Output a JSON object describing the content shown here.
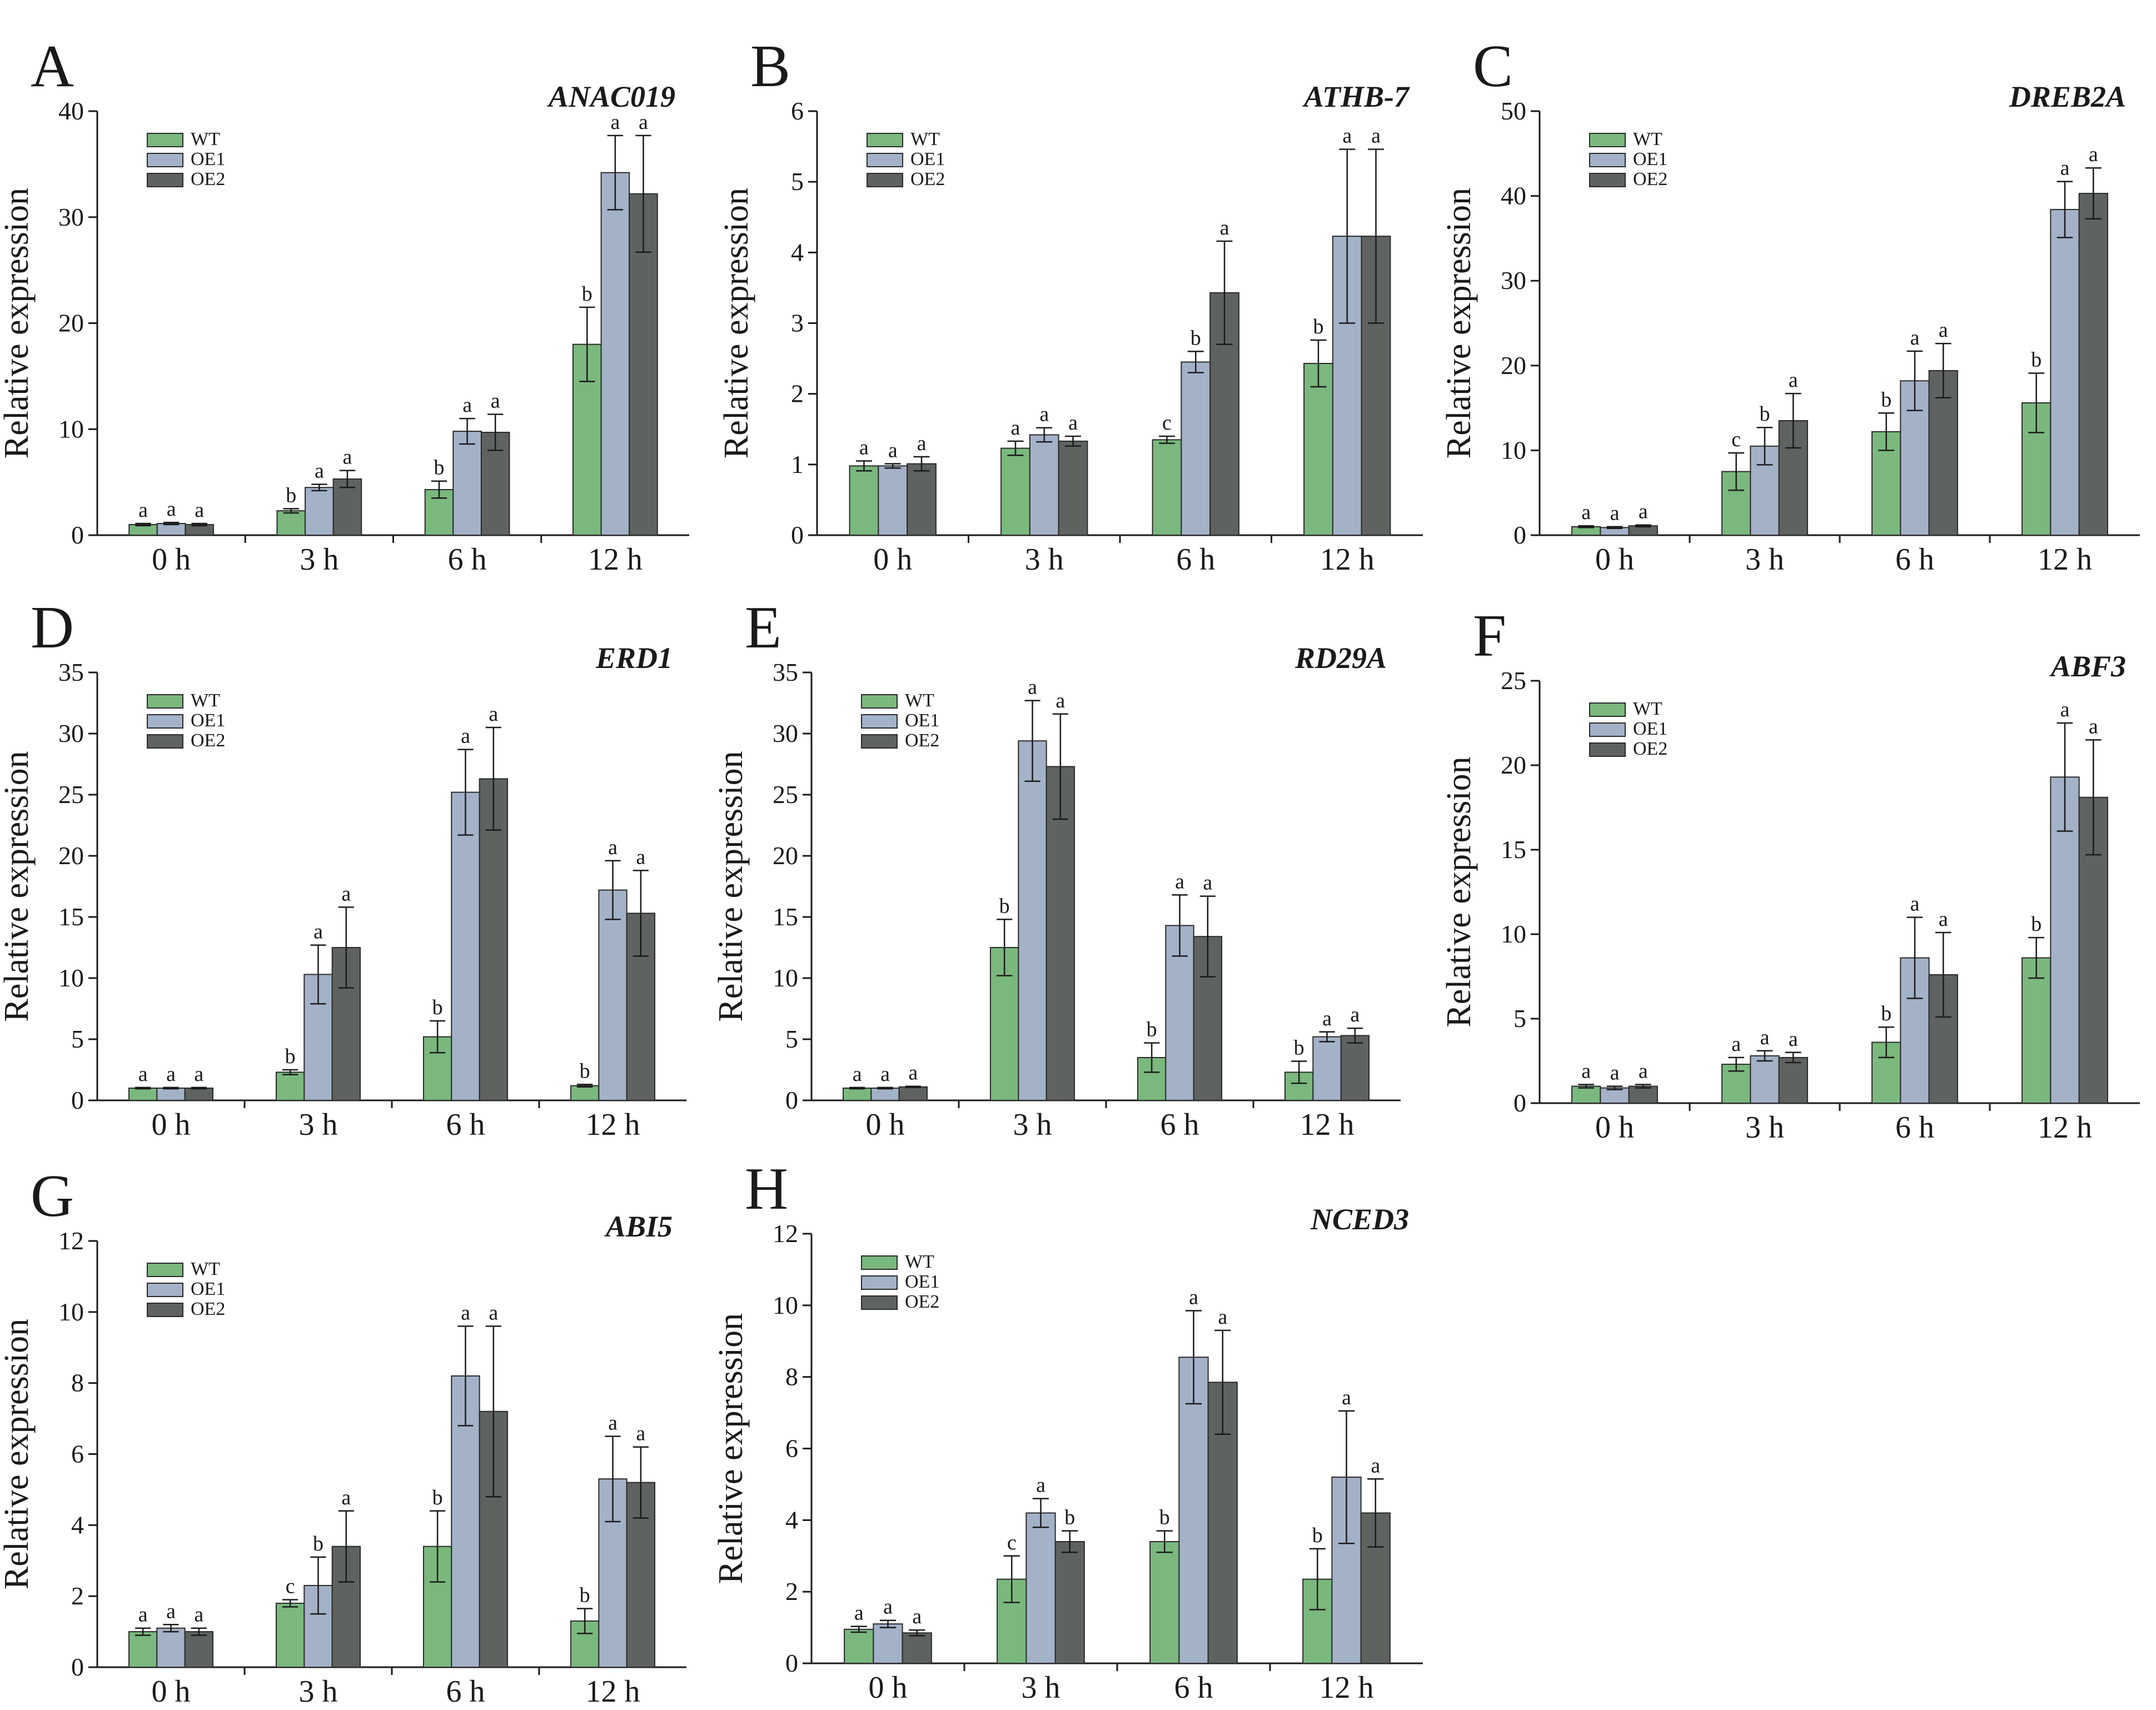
{
  "colors": {
    "WT": "#7ab87e",
    "OE1": "#a3b2c7",
    "OE2": "#5f6360",
    "axis": "#1a1a1a",
    "errorbar": "#1a1a1a"
  },
  "legend": [
    "WT",
    "OE1",
    "OE2"
  ],
  "chart_data": [
    {
      "type": "bar",
      "panel": "A",
      "title": "ANAC019",
      "ylabel": "Relative expression",
      "xlabel": "",
      "categories": [
        "0 h",
        "3 h",
        "6 h",
        "12 h"
      ],
      "ylim": [
        0,
        40
      ],
      "yticks": [
        0,
        10,
        20,
        30,
        40
      ],
      "series": [
        {
          "name": "WT",
          "values": [
            1.0,
            2.3,
            4.3,
            18.0
          ],
          "errors": [
            0.1,
            0.2,
            0.8,
            3.5
          ],
          "sig": [
            "a",
            "b",
            "b",
            "b"
          ]
        },
        {
          "name": "OE1",
          "values": [
            1.1,
            4.5,
            9.8,
            34.2
          ],
          "errors": [
            0.1,
            0.3,
            1.2,
            3.5
          ],
          "sig": [
            "a",
            "a",
            "a",
            "a"
          ]
        },
        {
          "name": "OE2",
          "values": [
            1.0,
            5.3,
            9.7,
            32.2
          ],
          "errors": [
            0.1,
            0.8,
            1.7,
            5.5
          ],
          "sig": [
            "a",
            "a",
            "a",
            "a"
          ]
        }
      ]
    },
    {
      "type": "bar",
      "panel": "B",
      "title": "ATHB-7",
      "ylabel": "Relative expression",
      "xlabel": "",
      "categories": [
        "0 h",
        "3 h",
        "6 h",
        "12 h"
      ],
      "ylim": [
        0,
        6
      ],
      "yticks": [
        0,
        1,
        2,
        3,
        4,
        5,
        6
      ],
      "series": [
        {
          "name": "WT",
          "values": [
            0.98,
            1.23,
            1.35,
            2.43
          ],
          "errors": [
            0.07,
            0.1,
            0.05,
            0.33
          ],
          "sig": [
            "a",
            "a",
            "c",
            "b"
          ]
        },
        {
          "name": "OE1",
          "values": [
            0.98,
            1.42,
            2.45,
            4.23
          ],
          "errors": [
            0.03,
            0.1,
            0.15,
            1.23
          ],
          "sig": [
            "a",
            "a",
            "b",
            "a"
          ]
        },
        {
          "name": "OE2",
          "values": [
            1.01,
            1.33,
            3.43,
            4.23
          ],
          "errors": [
            0.1,
            0.07,
            0.73,
            1.23
          ],
          "sig": [
            "a",
            "a",
            "a",
            "a"
          ]
        }
      ]
    },
    {
      "type": "bar",
      "panel": "C",
      "title": "DREB2A",
      "ylabel": "Relative expression",
      "xlabel": "",
      "categories": [
        "0 h",
        "3 h",
        "6 h",
        "12 h"
      ],
      "ylim": [
        0,
        50
      ],
      "yticks": [
        0,
        10,
        20,
        30,
        40,
        50
      ],
      "series": [
        {
          "name": "WT",
          "values": [
            1.0,
            7.5,
            12.2,
            15.6
          ],
          "errors": [
            0.1,
            2.2,
            2.2,
            3.5
          ],
          "sig": [
            "a",
            "c",
            "b",
            "b"
          ]
        },
        {
          "name": "OE1",
          "values": [
            0.9,
            10.5,
            18.2,
            38.4
          ],
          "errors": [
            0.1,
            2.2,
            3.5,
            3.3
          ],
          "sig": [
            "a",
            "b",
            "a",
            "a"
          ]
        },
        {
          "name": "OE2",
          "values": [
            1.1,
            13.5,
            19.4,
            40.3
          ],
          "errors": [
            0.1,
            3.2,
            3.2,
            3.0
          ],
          "sig": [
            "a",
            "a",
            "a",
            "a"
          ]
        }
      ]
    },
    {
      "type": "bar",
      "panel": "D",
      "title": "ERD1",
      "ylabel": "Relative expression",
      "xlabel": "",
      "categories": [
        "0 h",
        "3 h",
        "6 h",
        "12 h"
      ],
      "ylim": [
        0,
        35
      ],
      "yticks": [
        0,
        5,
        10,
        15,
        20,
        25,
        30,
        35
      ],
      "series": [
        {
          "name": "WT",
          "values": [
            1.0,
            2.3,
            5.2,
            1.2
          ],
          "errors": [
            0.05,
            0.2,
            1.3,
            0.1
          ],
          "sig": [
            "a",
            "b",
            "b",
            "b"
          ]
        },
        {
          "name": "OE1",
          "values": [
            1.0,
            10.3,
            25.2,
            17.2
          ],
          "errors": [
            0.05,
            2.4,
            3.5,
            2.4
          ],
          "sig": [
            "a",
            "a",
            "a",
            "a"
          ]
        },
        {
          "name": "OE2",
          "values": [
            1.0,
            12.5,
            26.3,
            15.3
          ],
          "errors": [
            0.05,
            3.3,
            4.2,
            3.5
          ],
          "sig": [
            "a",
            "a",
            "a",
            "a"
          ]
        }
      ]
    },
    {
      "type": "bar",
      "panel": "E",
      "title": "RD29A",
      "ylabel": "Relative expression",
      "xlabel": "",
      "categories": [
        "0 h",
        "3 h",
        "6 h",
        "12 h"
      ],
      "ylim": [
        0,
        35
      ],
      "yticks": [
        0,
        5,
        10,
        15,
        20,
        25,
        30,
        35
      ],
      "series": [
        {
          "name": "WT",
          "values": [
            1.0,
            12.5,
            3.5,
            2.3
          ],
          "errors": [
            0.05,
            2.3,
            1.2,
            0.9
          ],
          "sig": [
            "a",
            "b",
            "b",
            "b"
          ]
        },
        {
          "name": "OE1",
          "values": [
            1.0,
            29.4,
            14.3,
            5.2
          ],
          "errors": [
            0.05,
            3.3,
            2.5,
            0.4
          ],
          "sig": [
            "a",
            "a",
            "a",
            "a"
          ]
        },
        {
          "name": "OE2",
          "values": [
            1.1,
            27.3,
            13.4,
            5.3
          ],
          "errors": [
            0.05,
            4.3,
            3.3,
            0.6
          ],
          "sig": [
            "a",
            "a",
            "a",
            "a"
          ]
        }
      ]
    },
    {
      "type": "bar",
      "panel": "F",
      "title": "ABF3",
      "ylabel": "Relative expression",
      "xlabel": "",
      "categories": [
        "0 h",
        "3 h",
        "6 h",
        "12 h"
      ],
      "ylim": [
        0,
        25
      ],
      "yticks": [
        0,
        5,
        10,
        15,
        20,
        25
      ],
      "series": [
        {
          "name": "WT",
          "values": [
            1.0,
            2.3,
            3.6,
            8.6
          ],
          "errors": [
            0.1,
            0.4,
            0.9,
            1.2
          ],
          "sig": [
            "a",
            "a",
            "b",
            "b"
          ]
        },
        {
          "name": "OE1",
          "values": [
            0.9,
            2.8,
            8.6,
            19.3
          ],
          "errors": [
            0.1,
            0.3,
            2.4,
            3.2
          ],
          "sig": [
            "a",
            "a",
            "a",
            "a"
          ]
        },
        {
          "name": "OE2",
          "values": [
            1.0,
            2.7,
            7.6,
            18.1
          ],
          "errors": [
            0.1,
            0.3,
            2.5,
            3.4
          ],
          "sig": [
            "a",
            "a",
            "a",
            "a"
          ]
        }
      ]
    },
    {
      "type": "bar",
      "panel": "G",
      "title": "ABI5",
      "ylabel": "Relative expression",
      "xlabel": "",
      "categories": [
        "0 h",
        "3 h",
        "6 h",
        "12 h"
      ],
      "ylim": [
        0,
        12
      ],
      "yticks": [
        0,
        2,
        4,
        6,
        8,
        10,
        12
      ],
      "series": [
        {
          "name": "WT",
          "values": [
            1.0,
            1.8,
            3.4,
            1.3
          ],
          "errors": [
            0.1,
            0.1,
            1.0,
            0.35
          ],
          "sig": [
            "a",
            "c",
            "b",
            "b"
          ]
        },
        {
          "name": "OE1",
          "values": [
            1.1,
            2.3,
            8.2,
            5.3
          ],
          "errors": [
            0.1,
            0.8,
            1.4,
            1.2
          ],
          "sig": [
            "a",
            "b",
            "a",
            "a"
          ]
        },
        {
          "name": "OE2",
          "values": [
            1.0,
            3.4,
            7.2,
            5.2
          ],
          "errors": [
            0.1,
            1.0,
            2.4,
            1.0
          ],
          "sig": [
            "a",
            "a",
            "a",
            "a"
          ]
        }
      ]
    },
    {
      "type": "bar",
      "panel": "H",
      "title": "NCED3",
      "ylabel": "Relative expression",
      "xlabel": "",
      "categories": [
        "0 h",
        "3 h",
        "6 h",
        "12 h"
      ],
      "ylim": [
        0,
        12
      ],
      "yticks": [
        0,
        2,
        4,
        6,
        8,
        10,
        12
      ],
      "series": [
        {
          "name": "WT",
          "values": [
            0.95,
            2.35,
            3.4,
            2.35
          ],
          "errors": [
            0.08,
            0.65,
            0.3,
            0.85
          ],
          "sig": [
            "a",
            "c",
            "b",
            "b"
          ]
        },
        {
          "name": "OE1",
          "values": [
            1.1,
            4.2,
            8.55,
            5.2
          ],
          "errors": [
            0.1,
            0.4,
            1.3,
            1.85
          ],
          "sig": [
            "a",
            "a",
            "a",
            "a"
          ]
        },
        {
          "name": "OE2",
          "values": [
            0.85,
            3.4,
            7.85,
            4.2
          ],
          "errors": [
            0.08,
            0.3,
            1.45,
            0.95
          ],
          "sig": [
            "a",
            "b",
            "a",
            "a"
          ]
        }
      ]
    }
  ]
}
